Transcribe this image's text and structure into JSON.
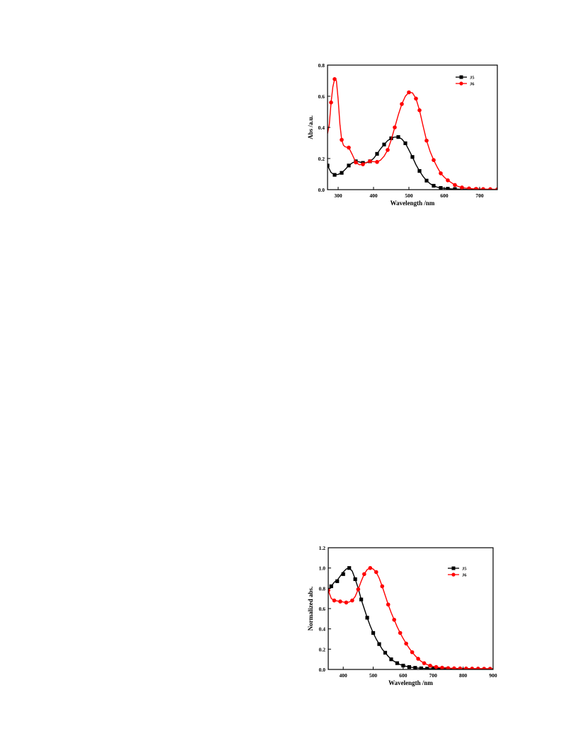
{
  "chart_data": [
    {
      "type": "line",
      "xlabel": "Wavelength /nm",
      "ylabel": "Abs /a.u.",
      "xlim": [
        270,
        750
      ],
      "ylim": [
        0,
        0.8
      ],
      "xticks": [
        300,
        400,
        500,
        600,
        700
      ],
      "xtick_labels": [
        "300",
        "400",
        "500",
        "600",
        "700"
      ],
      "yticks": [
        0,
        0.2,
        0.4,
        0.6,
        0.8
      ],
      "ytick_labels": [
        "0.0",
        "0.2",
        "0.4",
        "0.6",
        "0.8"
      ],
      "grid": false,
      "legend_position": "top-right",
      "series": [
        {
          "name": "J5",
          "color": "#000000",
          "marker": "square",
          "curve": [
            [
              270,
              0.155
            ],
            [
              280,
              0.11
            ],
            [
              290,
              0.095
            ],
            [
              300,
              0.098
            ],
            [
              310,
              0.108
            ],
            [
              320,
              0.13
            ],
            [
              330,
              0.155
            ],
            [
              340,
              0.172
            ],
            [
              350,
              0.182
            ],
            [
              360,
              0.178
            ],
            [
              370,
              0.172
            ],
            [
              380,
              0.173
            ],
            [
              390,
              0.182
            ],
            [
              400,
              0.2
            ],
            [
              410,
              0.23
            ],
            [
              420,
              0.263
            ],
            [
              430,
              0.29
            ],
            [
              440,
              0.315
            ],
            [
              450,
              0.33
            ],
            [
              460,
              0.338
            ],
            [
              470,
              0.338
            ],
            [
              480,
              0.325
            ],
            [
              490,
              0.298
            ],
            [
              500,
              0.255
            ],
            [
              510,
              0.21
            ],
            [
              520,
              0.16
            ],
            [
              530,
              0.12
            ],
            [
              540,
              0.085
            ],
            [
              550,
              0.058
            ],
            [
              560,
              0.038
            ],
            [
              570,
              0.025
            ],
            [
              580,
              0.016
            ],
            [
              590,
              0.011
            ],
            [
              600,
              0.008
            ],
            [
              620,
              0.005
            ],
            [
              640,
              0.003
            ],
            [
              660,
              0.002
            ],
            [
              680,
              0.002
            ],
            [
              700,
              0.001
            ],
            [
              750,
              0.001
            ]
          ],
          "markers": [
            [
              270,
              0.155
            ],
            [
              290,
              0.095
            ],
            [
              310,
              0.108
            ],
            [
              330,
              0.155
            ],
            [
              350,
              0.182
            ],
            [
              370,
              0.172
            ],
            [
              390,
              0.182
            ],
            [
              410,
              0.23
            ],
            [
              430,
              0.29
            ],
            [
              450,
              0.33
            ],
            [
              470,
              0.338
            ],
            [
              490,
              0.298
            ],
            [
              510,
              0.21
            ],
            [
              530,
              0.12
            ],
            [
              550,
              0.058
            ],
            [
              570,
              0.025
            ],
            [
              590,
              0.011
            ],
            [
              610,
              0.006
            ],
            [
              630,
              0.004
            ],
            [
              650,
              0.003
            ],
            [
              670,
              0.002
            ],
            [
              690,
              0.002
            ]
          ]
        },
        {
          "name": "J6",
          "color": "#ff0000",
          "marker": "circle",
          "curve": [
            [
              270,
              0.36
            ],
            [
              275,
              0.42
            ],
            [
              280,
              0.56
            ],
            [
              285,
              0.66
            ],
            [
              290,
              0.71
            ],
            [
              295,
              0.7
            ],
            [
              300,
              0.58
            ],
            [
              305,
              0.42
            ],
            [
              310,
              0.32
            ],
            [
              315,
              0.285
            ],
            [
              320,
              0.275
            ],
            [
              330,
              0.27
            ],
            [
              340,
              0.225
            ],
            [
              350,
              0.175
            ],
            [
              360,
              0.16
            ],
            [
              370,
              0.163
            ],
            [
              380,
              0.175
            ],
            [
              390,
              0.183
            ],
            [
              400,
              0.18
            ],
            [
              410,
              0.178
            ],
            [
              420,
              0.19
            ],
            [
              430,
              0.215
            ],
            [
              440,
              0.255
            ],
            [
              450,
              0.32
            ],
            [
              460,
              0.4
            ],
            [
              470,
              0.48
            ],
            [
              480,
              0.55
            ],
            [
              490,
              0.6
            ],
            [
              500,
              0.625
            ],
            [
              510,
              0.622
            ],
            [
              520,
              0.585
            ],
            [
              530,
              0.51
            ],
            [
              540,
              0.41
            ],
            [
              550,
              0.315
            ],
            [
              560,
              0.245
            ],
            [
              570,
              0.19
            ],
            [
              580,
              0.145
            ],
            [
              590,
              0.105
            ],
            [
              600,
              0.08
            ],
            [
              610,
              0.06
            ],
            [
              620,
              0.045
            ],
            [
              630,
              0.03
            ],
            [
              640,
              0.02
            ],
            [
              650,
              0.014
            ],
            [
              660,
              0.01
            ],
            [
              680,
              0.006
            ],
            [
              700,
              0.004
            ],
            [
              720,
              0.003
            ],
            [
              750,
              0.002
            ]
          ],
          "markers": [
            [
              280,
              0.56
            ],
            [
              290,
              0.71
            ],
            [
              310,
              0.32
            ],
            [
              330,
              0.27
            ],
            [
              350,
              0.175
            ],
            [
              370,
              0.163
            ],
            [
              390,
              0.183
            ],
            [
              410,
              0.178
            ],
            [
              440,
              0.255
            ],
            [
              460,
              0.4
            ],
            [
              480,
              0.55
            ],
            [
              500,
              0.625
            ],
            [
              520,
              0.585
            ],
            [
              530,
              0.51
            ],
            [
              550,
              0.315
            ],
            [
              570,
              0.19
            ],
            [
              590,
              0.105
            ],
            [
              610,
              0.06
            ],
            [
              630,
              0.03
            ],
            [
              650,
              0.014
            ],
            [
              670,
              0.008
            ],
            [
              690,
              0.005
            ],
            [
              710,
              0.004
            ],
            [
              730,
              0.003
            ],
            [
              750,
              0.002
            ]
          ]
        }
      ]
    },
    {
      "type": "line",
      "xlabel": "Wavelength /nm",
      "ylabel": "Normalized abs.",
      "xlim": [
        350,
        900
      ],
      "ylim": [
        0,
        1.2
      ],
      "xticks": [
        400,
        500,
        600,
        700,
        800,
        900
      ],
      "xtick_labels": [
        "400",
        "500",
        "600",
        "700",
        "800",
        "900"
      ],
      "yticks": [
        0,
        0.2,
        0.4,
        0.6,
        0.8,
        1.0,
        1.2
      ],
      "ytick_labels": [
        "0.0",
        "0.2",
        "0.4",
        "0.6",
        "0.8",
        "1.0",
        "1.2"
      ],
      "grid": false,
      "legend_position": "top-right",
      "series": [
        {
          "name": "J5",
          "color": "#000000",
          "marker": "square",
          "curve": [
            [
              350,
              0.78
            ],
            [
              360,
              0.82
            ],
            [
              370,
              0.86
            ],
            [
              380,
              0.88
            ],
            [
              390,
              0.92
            ],
            [
              400,
              0.96
            ],
            [
              410,
              0.99
            ],
            [
              420,
              1.0
            ],
            [
              430,
              0.97
            ],
            [
              440,
              0.89
            ],
            [
              450,
              0.8
            ],
            [
              460,
              0.69
            ],
            [
              470,
              0.6
            ],
            [
              480,
              0.51
            ],
            [
              490,
              0.43
            ],
            [
              500,
              0.36
            ],
            [
              510,
              0.3
            ],
            [
              520,
              0.25
            ],
            [
              530,
              0.2
            ],
            [
              540,
              0.165
            ],
            [
              550,
              0.13
            ],
            [
              560,
              0.1
            ],
            [
              570,
              0.08
            ],
            [
              580,
              0.062
            ],
            [
              590,
              0.048
            ],
            [
              600,
              0.038
            ],
            [
              620,
              0.024
            ],
            [
              640,
              0.016
            ],
            [
              660,
              0.011
            ],
            [
              680,
              0.008
            ],
            [
              700,
              0.006
            ],
            [
              750,
              0.004
            ],
            [
              800,
              0.003
            ],
            [
              900,
              0.002
            ]
          ],
          "markers": [
            [
              360,
              0.82
            ],
            [
              380,
              0.87
            ],
            [
              400,
              0.94
            ],
            [
              420,
              1.0
            ],
            [
              440,
              0.89
            ],
            [
              460,
              0.69
            ],
            [
              480,
              0.51
            ],
            [
              500,
              0.36
            ],
            [
              520,
              0.25
            ],
            [
              540,
              0.165
            ],
            [
              560,
              0.1
            ],
            [
              580,
              0.062
            ],
            [
              600,
              0.038
            ],
            [
              620,
              0.024
            ],
            [
              640,
              0.016
            ],
            [
              660,
              0.011
            ],
            [
              680,
              0.008
            ],
            [
              700,
              0.006
            ],
            [
              720,
              0.005
            ],
            [
              740,
              0.004
            ]
          ]
        },
        {
          "name": "J6",
          "color": "#ff0000",
          "marker": "circle",
          "curve": [
            [
              350,
              0.78
            ],
            [
              355,
              0.74
            ],
            [
              360,
              0.7
            ],
            [
              370,
              0.68
            ],
            [
              380,
              0.675
            ],
            [
              390,
              0.67
            ],
            [
              400,
              0.665
            ],
            [
              410,
              0.66
            ],
            [
              420,
              0.665
            ],
            [
              430,
              0.68
            ],
            [
              440,
              0.72
            ],
            [
              450,
              0.79
            ],
            [
              460,
              0.87
            ],
            [
              470,
              0.94
            ],
            [
              480,
              0.985
            ],
            [
              490,
              1.0
            ],
            [
              500,
              0.99
            ],
            [
              510,
              0.96
            ],
            [
              520,
              0.9
            ],
            [
              530,
              0.82
            ],
            [
              540,
              0.73
            ],
            [
              550,
              0.64
            ],
            [
              560,
              0.56
            ],
            [
              570,
              0.49
            ],
            [
              580,
              0.42
            ],
            [
              590,
              0.36
            ],
            [
              600,
              0.305
            ],
            [
              610,
              0.255
            ],
            [
              620,
              0.21
            ],
            [
              630,
              0.17
            ],
            [
              640,
              0.135
            ],
            [
              650,
              0.105
            ],
            [
              660,
              0.08
            ],
            [
              670,
              0.062
            ],
            [
              680,
              0.048
            ],
            [
              690,
              0.037
            ],
            [
              700,
              0.029
            ],
            [
              720,
              0.02
            ],
            [
              740,
              0.015
            ],
            [
              760,
              0.012
            ],
            [
              780,
              0.01
            ],
            [
              800,
              0.009
            ],
            [
              850,
              0.008
            ],
            [
              900,
              0.007
            ]
          ],
          "markers": [
            [
              350,
              0.78
            ],
            [
              370,
              0.68
            ],
            [
              390,
              0.67
            ],
            [
              410,
              0.66
            ],
            [
              430,
              0.68
            ],
            [
              450,
              0.79
            ],
            [
              470,
              0.94
            ],
            [
              490,
              1.0
            ],
            [
              510,
              0.96
            ],
            [
              530,
              0.82
            ],
            [
              550,
              0.64
            ],
            [
              570,
              0.49
            ],
            [
              590,
              0.36
            ],
            [
              610,
              0.255
            ],
            [
              630,
              0.17
            ],
            [
              650,
              0.105
            ],
            [
              670,
              0.062
            ],
            [
              690,
              0.037
            ],
            [
              710,
              0.024
            ],
            [
              730,
              0.017
            ],
            [
              750,
              0.013
            ],
            [
              770,
              0.011
            ],
            [
              790,
              0.01
            ],
            [
              810,
              0.009
            ],
            [
              830,
              0.008
            ],
            [
              850,
              0.008
            ],
            [
              870,
              0.007
            ],
            [
              890,
              0.007
            ]
          ]
        }
      ]
    }
  ]
}
